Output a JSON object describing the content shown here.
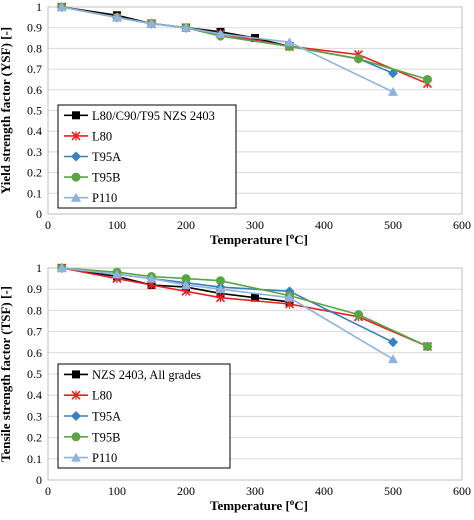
{
  "chart_data": [
    {
      "type": "line",
      "panel": "top",
      "xlabel": "Temperature [°C]",
      "xlabel_main": "Temperature [",
      "xlabel_sup": "o",
      "xlabel_end": "C]",
      "ylabel": "Yield strength factor (YSF) [-]",
      "xlim": [
        0,
        600
      ],
      "ylim": [
        0,
        1
      ],
      "x_ticks": [
        0,
        100,
        200,
        300,
        400,
        500,
        600
      ],
      "y_ticks": [
        0,
        0.1,
        0.2,
        0.3,
        0.4,
        0.5,
        0.6,
        0.7,
        0.8,
        0.9,
        1
      ],
      "grid": "horizontal",
      "legend_position": "left",
      "series": [
        {
          "name": "L80/C90/T95 NZS 2403",
          "color": "#000000",
          "marker": "square",
          "x": [
            20,
            100,
            150,
            200,
            250,
            300,
            350
          ],
          "y": [
            1.0,
            0.96,
            0.92,
            0.9,
            0.88,
            0.85,
            0.81
          ]
        },
        {
          "name": "L80",
          "color": "#e8201e",
          "marker": "x",
          "x": [
            20,
            100,
            150,
            200,
            250,
            350,
            450,
            550
          ],
          "y": [
            1.0,
            0.95,
            0.92,
            0.9,
            0.87,
            0.81,
            0.77,
            0.63
          ]
        },
        {
          "name": "T95A",
          "color": "#3a7fc1",
          "marker": "diamond",
          "x": [
            20,
            100,
            150,
            200,
            250,
            350,
            450,
            500
          ],
          "y": [
            1.0,
            0.95,
            0.92,
            0.9,
            0.86,
            0.81,
            0.75,
            0.68
          ]
        },
        {
          "name": "T95B",
          "color": "#5aa542",
          "marker": "circle",
          "x": [
            20,
            100,
            150,
            200,
            250,
            350,
            450,
            550
          ],
          "y": [
            1.0,
            0.95,
            0.92,
            0.9,
            0.86,
            0.81,
            0.75,
            0.65
          ]
        },
        {
          "name": "P110",
          "color": "#8fb3dc",
          "marker": "triangle",
          "x": [
            20,
            100,
            150,
            200,
            250,
            350,
            500
          ],
          "y": [
            1.0,
            0.95,
            0.92,
            0.9,
            0.87,
            0.83,
            0.59
          ]
        }
      ]
    },
    {
      "type": "line",
      "panel": "bottom",
      "xlabel": "Temperature [°C]",
      "xlabel_main": "Temperature [",
      "xlabel_sup": "o",
      "xlabel_end": "C]",
      "ylabel": "Tensile strength factor (TSF) [-]",
      "xlim": [
        0,
        600
      ],
      "ylim": [
        0,
        1
      ],
      "x_ticks": [
        0,
        100,
        200,
        300,
        400,
        500,
        600
      ],
      "y_ticks": [
        0,
        0.1,
        0.2,
        0.3,
        0.4,
        0.5,
        0.6,
        0.7,
        0.8,
        0.9,
        1
      ],
      "grid": "horizontal",
      "legend_position": "left",
      "series": [
        {
          "name": "NZS 2403, All grades",
          "color": "#000000",
          "marker": "square",
          "x": [
            20,
            100,
            150,
            200,
            250,
            300,
            350
          ],
          "y": [
            1.0,
            0.96,
            0.92,
            0.91,
            0.88,
            0.86,
            0.84
          ]
        },
        {
          "name": "L80",
          "color": "#e8201e",
          "marker": "x",
          "x": [
            20,
            100,
            150,
            200,
            250,
            350,
            450,
            550
          ],
          "y": [
            1.0,
            0.95,
            0.92,
            0.89,
            0.86,
            0.83,
            0.77,
            0.63
          ]
        },
        {
          "name": "T95A",
          "color": "#3a7fc1",
          "marker": "diamond",
          "x": [
            20,
            100,
            150,
            200,
            250,
            350,
            500
          ],
          "y": [
            1.0,
            0.97,
            0.95,
            0.93,
            0.91,
            0.89,
            0.65
          ]
        },
        {
          "name": "T95B",
          "color": "#5aa542",
          "marker": "circle",
          "x": [
            20,
            100,
            150,
            200,
            250,
            350,
            450,
            550
          ],
          "y": [
            1.0,
            0.98,
            0.96,
            0.95,
            0.94,
            0.87,
            0.78,
            0.63
          ]
        },
        {
          "name": "P110",
          "color": "#8fb3dc",
          "marker": "triangle",
          "x": [
            20,
            100,
            150,
            200,
            250,
            350,
            500
          ],
          "y": [
            1.0,
            0.97,
            0.95,
            0.92,
            0.9,
            0.86,
            0.57
          ]
        }
      ]
    }
  ]
}
